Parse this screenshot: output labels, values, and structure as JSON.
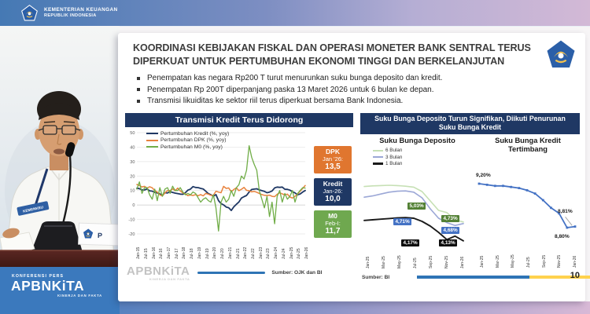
{
  "header": {
    "ministry_line1": "KEMENTERIAN KEUANGAN",
    "ministry_line2": "REPUBLIK INDONESIA"
  },
  "video": {
    "speaker_badge": "KEMENKEU",
    "nameplate_text": "P",
    "brand": {
      "kicker": "KONFERENSI PERS",
      "logo": "APBNKiTA",
      "tagline": "KINERJA DAN FAKTA"
    }
  },
  "slide": {
    "title_lines": [
      "KOORDINASI KEBIJAKAN FISKAL DAN OPERASI MONETER BANK SENTRAL TERUS",
      "DIPERKUAT UNTUK PERTUMBUHAN EKONOMI TINGGI DAN BERKELANJUTAN"
    ],
    "bullets": [
      "Penempatan kas negara Rp200 T turut menurunkan suku bunga deposito dan kredit.",
      "Penempatan Rp 200T diperpanjang paska 13 Maret 2026 untuk 6 bulan ke depan.",
      "Transmisi likuiditas ke sektor riil terus diperkuat bersama Bank Indonesia."
    ],
    "right_panel_title": "Suku Bunga Deposito Turun Signifikan, Diikuti Penurunan Suku Bunga Kredit",
    "sources": {
      "left": "Sumber: OJK dan BI",
      "right": "Sumber: BI"
    },
    "watermark": {
      "logo": "APBNKiTA",
      "tagline": "KINERJA DAN FAKTA"
    },
    "page_number": "10"
  },
  "colors": {
    "navy": "#1F3864",
    "orange": "#E0762F",
    "green": "#6FA84F",
    "light_green": "#C6E0B4",
    "periwinkle": "#9BA7D6",
    "line_blue": "#4472C4",
    "accent_bar_blue": "#2E74B5",
    "accent_bar_yellow": "#FFD24D"
  },
  "chart_data": [
    {
      "id": "transmisi",
      "type": "line",
      "title": "Transmisi Kredit Terus Didorong",
      "x_tick_labels": [
        "Jan-15",
        "Jul-15",
        "Jan-16",
        "Jul-16",
        "Jan-17",
        "Jul-17",
        "Jan-18",
        "Jul-18",
        "Jan-19",
        "Jul-19",
        "Jan-20",
        "Jul-20",
        "Jan-21",
        "Jul-21",
        "Jan-22",
        "Jul-22",
        "Jan-23",
        "Jul-23",
        "Jan-24",
        "Jul-24",
        "Jan-25",
        "Jul-25",
        "Jan-26"
      ],
      "sampling": "values estimated every 2 months, Jan-15 through Jan-26",
      "ylim": [
        -20,
        50
      ],
      "yticks": [
        -20,
        -10,
        0,
        10,
        20,
        30,
        40,
        50
      ],
      "grid": true,
      "legend_position": "top-left",
      "series": [
        {
          "name": "Pertumbuhan Kredit (%, yoy)",
          "color": "#1F3864",
          "width": 1.8,
          "values": [
            11.6,
            11.3,
            10.4,
            10.4,
            11.1,
            9.8,
            9.6,
            8.7,
            8.3,
            7.7,
            6.5,
            8.5,
            8.3,
            9.2,
            8.7,
            8.2,
            7.9,
            7.5,
            7.4,
            8.5,
            10.3,
            11.0,
            12.7,
            12.1,
            12.0,
            11.5,
            11.1,
            9.6,
            7.9,
            7.1,
            6.1,
            7.2,
            3.0,
            1.0,
            0.1,
            -1.4,
            -1.9,
            -3.8,
            -1.3,
            0.5,
            2.1,
            4.8,
            5.8,
            6.6,
            9.0,
            10.7,
            11.0,
            11.2,
            10.5,
            9.9,
            9.4,
            8.5,
            8.9,
            9.7,
            11.8,
            12.4,
            12.2,
            12.4,
            10.9,
            10.8,
            10.3,
            9.2,
            8.4,
            7.0,
            7.6,
            9.0,
            10.0
          ]
        },
        {
          "name": "Pertumbuhan DPK (%, yoy)",
          "color": "#E8823C",
          "width": 1.5,
          "values": [
            14.2,
            13.5,
            12.5,
            12.9,
            11.7,
            12.6,
            11.9,
            10.0,
            9.0,
            7.0,
            6.2,
            8.4,
            10.0,
            10.0,
            11.2,
            9.9,
            11.7,
            9.8,
            8.4,
            7.7,
            6.5,
            6.9,
            6.6,
            7.2,
            6.4,
            7.2,
            6.3,
            8.0,
            7.5,
            6.7,
            6.8,
            9.5,
            8.9,
            8.5,
            12.9,
            11.5,
            11.8,
            9.2,
            10.7,
            11.9,
            9.9,
            10.9,
            12.1,
            10.1,
            9.9,
            9.1,
            9.4,
            8.8,
            8.0,
            7.2,
            6.7,
            6.6,
            6.8,
            6.0,
            5.8,
            7.4,
            8.5,
            7.7,
            7.0,
            7.5,
            5.5,
            4.8,
            6.0,
            7.5,
            9.5,
            11.5,
            13.5
          ]
        },
        {
          "name": "Pertumbuhan M0 (%, yoy)",
          "color": "#70AD47",
          "width": 1.3,
          "values": [
            11,
            16,
            8,
            12,
            12,
            7,
            4,
            11,
            3,
            12,
            6,
            11,
            12,
            8,
            13,
            10,
            10,
            12,
            9,
            7,
            8,
            7,
            9,
            8,
            5,
            2,
            4,
            5,
            3,
            2,
            7,
            -2,
            -18,
            2,
            6,
            2,
            4,
            10,
            6,
            12,
            14,
            20,
            18,
            24,
            41,
            33,
            28,
            24,
            10,
            4,
            -2,
            6,
            -8,
            2,
            -13,
            6,
            10,
            2,
            8,
            4,
            6,
            10,
            2,
            8,
            10,
            12,
            11.7
          ]
        }
      ],
      "callouts": [
        {
          "label": "DPK",
          "period": "Jan '26:",
          "value": "13,5",
          "color": "#E0762F"
        },
        {
          "label": "Kredit",
          "period": "Jan-26:",
          "value": "10,0",
          "color": "#1F3864"
        },
        {
          "label": "M0",
          "period": "Feb-I:",
          "value": "11,7",
          "color": "#6FA84F"
        }
      ],
      "source": "Sumber: OJK dan BI"
    },
    {
      "id": "deposito",
      "type": "line",
      "title": "Suku Bunga Deposito",
      "x_tick_labels": [
        "Jan-25",
        "Mar-25",
        "May-25",
        "Jul-25",
        "Sep-25",
        "Nov-25",
        "Jan-26"
      ],
      "sampling": "monthly Jan-25 through Jan-26",
      "ylim": [
        4.0,
        6.05
      ],
      "grid": false,
      "series": [
        {
          "name": "6 Bulan",
          "color": "#C6E0B4",
          "width": 1.6,
          "values": [
            5.86,
            5.88,
            5.89,
            5.9,
            5.89,
            5.87,
            5.84,
            5.7,
            5.4,
            5.1,
            5.03,
            4.8,
            4.73
          ]
        },
        {
          "name": "3 Bulan",
          "color": "#9BA7D6",
          "width": 1.6,
          "values": [
            5.52,
            5.56,
            5.62,
            5.68,
            5.71,
            5.72,
            5.68,
            5.5,
            5.15,
            4.85,
            4.71,
            4.62,
            4.68
          ]
        },
        {
          "name": "1 Bulan",
          "color": "#1a1a1a",
          "width": 1.9,
          "values": [
            4.78,
            4.8,
            4.82,
            4.84,
            4.86,
            4.87,
            4.85,
            4.75,
            4.6,
            4.4,
            4.17,
            4.28,
            4.13
          ]
        }
      ],
      "point_labels": [
        {
          "text": "5,03%",
          "series": "6 Bulan",
          "bg": "#538135"
        },
        {
          "text": "4,73%",
          "series": "6 Bulan",
          "bg": "#538135"
        },
        {
          "text": "4,71%",
          "series": "3 Bulan",
          "bg": "#4472C4"
        },
        {
          "text": "4,68%",
          "series": "3 Bulan",
          "bg": "#4472C4"
        },
        {
          "text": "4,17%",
          "series": "1 Bulan",
          "bg": "#0d0d0d"
        },
        {
          "text": "4,13%",
          "series": "1 Bulan",
          "bg": "#0d0d0d"
        }
      ],
      "source": "Sumber: BI"
    },
    {
      "id": "kredit_tertimbang",
      "type": "line",
      "title": "Suku Bunga Kredit Tertimbang",
      "x_tick_labels": [
        "Jan-25",
        "Mar-25",
        "May-25",
        "Jul-25",
        "Sep-25",
        "Nov-25",
        "Jan-26"
      ],
      "sampling": "monthly Jan-25 through Jan-26",
      "ylim": [
        8.65,
        9.35
      ],
      "grid": false,
      "series": [
        {
          "name": "Suku Bunga Kredit Tertimbang",
          "color": "#4472C4",
          "width": 1.8,
          "markers": true,
          "values": [
            9.2,
            9.19,
            9.18,
            9.18,
            9.17,
            9.16,
            9.14,
            9.11,
            9.05,
            8.98,
            8.93,
            8.8,
            8.81
          ]
        }
      ],
      "point_labels": [
        {
          "text": "9,20%"
        },
        {
          "text": "8,81%"
        },
        {
          "text": "8,80%"
        }
      ]
    }
  ]
}
